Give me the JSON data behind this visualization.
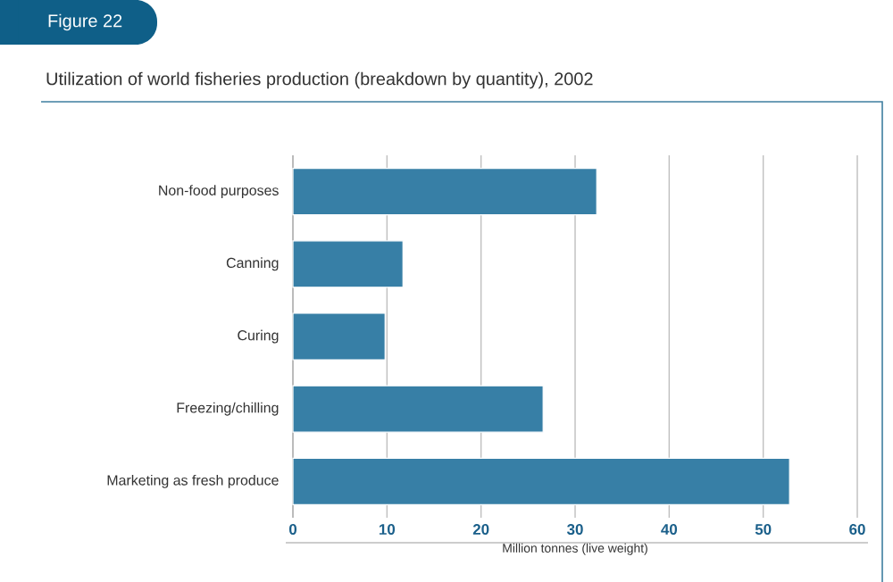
{
  "chart_data": {
    "type": "bar",
    "orientation": "horizontal",
    "title": "Utilization of world fisheries production (breakdown by quantity), 2002",
    "annotations": [
      "Figure 22"
    ],
    "categories": [
      "Non-food purposes",
      "Canning",
      "Curing",
      "Freezing/chilling",
      "Marketing as fresh produce"
    ],
    "values": [
      32.3,
      11.7,
      9.8,
      26.6,
      52.8
    ],
    "color": "#377fa6",
    "xlabel": "Million tonnes (live weight)",
    "xlim": [
      0,
      60
    ],
    "xticks": [
      0,
      10,
      20,
      30,
      40,
      50,
      60
    ],
    "grid": "x"
  }
}
